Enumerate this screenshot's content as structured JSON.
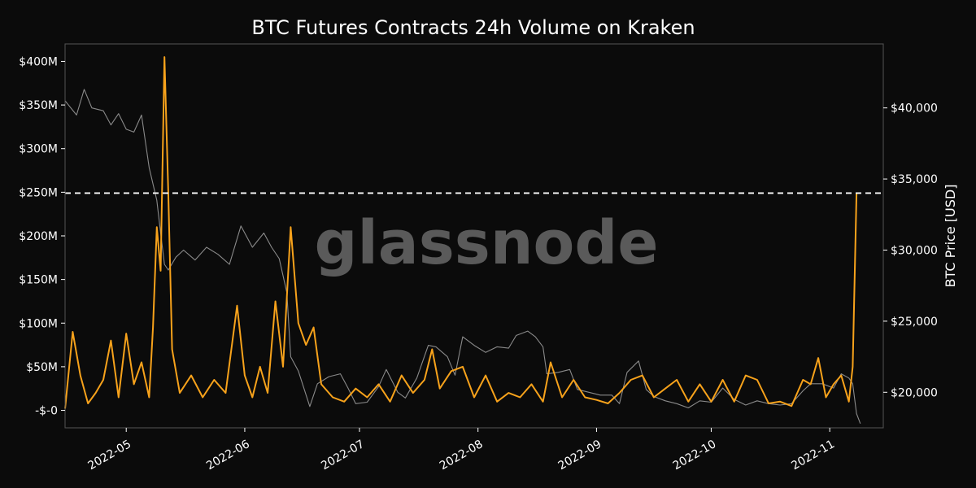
{
  "chart_data": {
    "type": "line",
    "title": "BTC Futures Contracts 24h Volume on Kraken",
    "watermark": "glassnode",
    "y_left": {
      "range": [
        -20000000,
        420000000
      ],
      "ticks": [
        0,
        50000000,
        100000000,
        150000000,
        200000000,
        250000000,
        300000000,
        350000000,
        400000000
      ],
      "tick_labels": [
        "-$-0",
        "$50M",
        "$100M",
        "$150M",
        "$200M",
        "$250M",
        "$300M",
        "$350M",
        "$400M"
      ]
    },
    "y_right": {
      "label": "BTC Price [USD]",
      "range": [
        17500,
        44500
      ],
      "ticks": [
        20000,
        25000,
        30000,
        35000,
        40000
      ],
      "tick_labels": [
        "$20,000",
        "$25,000",
        "$30,000",
        "$35,000",
        "$40,000"
      ]
    },
    "x_axis": {
      "range": [
        "2022-04-15",
        "2022-11-15"
      ],
      "ticks": [
        "2022-05-01",
        "2022-06-01",
        "2022-07-01",
        "2022-08-01",
        "2022-09-01",
        "2022-10-01",
        "2022-11-01"
      ],
      "tick_labels": [
        "2022-05",
        "2022-06",
        "2022-07",
        "2022-08",
        "2022-09",
        "2022-10",
        "2022-11"
      ]
    },
    "reference_line": {
      "y": 249000000,
      "style": "dashed",
      "color": "#ffffff"
    },
    "colors": {
      "volume": "#f7a21b",
      "price": "#8a8a8a",
      "background": "#0b0b0b",
      "axis": "#555555",
      "text": "#ffffff"
    },
    "series": [
      {
        "axis": "right",
        "color": "#8a8a8a",
        "points": [
          [
            "2022-04-15",
            40500
          ],
          [
            "2022-04-18",
            39500
          ],
          [
            "2022-04-20",
            41300
          ],
          [
            "2022-04-22",
            40000
          ],
          [
            "2022-04-25",
            39800
          ],
          [
            "2022-04-27",
            38800
          ],
          [
            "2022-04-29",
            39600
          ],
          [
            "2022-05-01",
            38500
          ],
          [
            "2022-05-03",
            38300
          ],
          [
            "2022-05-05",
            39500
          ],
          [
            "2022-05-07",
            35800
          ],
          [
            "2022-05-09",
            33500
          ],
          [
            "2022-05-10",
            31200
          ],
          [
            "2022-05-11",
            29000
          ],
          [
            "2022-05-12",
            28600
          ],
          [
            "2022-05-14",
            29500
          ],
          [
            "2022-05-16",
            30000
          ],
          [
            "2022-05-19",
            29300
          ],
          [
            "2022-05-22",
            30200
          ],
          [
            "2022-05-25",
            29700
          ],
          [
            "2022-05-28",
            29000
          ],
          [
            "2022-05-31",
            31700
          ],
          [
            "2022-06-03",
            30200
          ],
          [
            "2022-06-06",
            31200
          ],
          [
            "2022-06-08",
            30200
          ],
          [
            "2022-06-10",
            29400
          ],
          [
            "2022-06-12",
            27000
          ],
          [
            "2022-06-13",
            22500
          ],
          [
            "2022-06-15",
            21500
          ],
          [
            "2022-06-18",
            19000
          ],
          [
            "2022-06-20",
            20600
          ],
          [
            "2022-06-23",
            21100
          ],
          [
            "2022-06-26",
            21300
          ],
          [
            "2022-06-28",
            20300
          ],
          [
            "2022-06-30",
            19200
          ],
          [
            "2022-07-03",
            19300
          ],
          [
            "2022-07-06",
            20400
          ],
          [
            "2022-07-08",
            21600
          ],
          [
            "2022-07-11",
            20000
          ],
          [
            "2022-07-13",
            19600
          ],
          [
            "2022-07-16",
            21000
          ],
          [
            "2022-07-19",
            23300
          ],
          [
            "2022-07-21",
            23200
          ],
          [
            "2022-07-24",
            22500
          ],
          [
            "2022-07-26",
            21200
          ],
          [
            "2022-07-28",
            23900
          ],
          [
            "2022-07-31",
            23300
          ],
          [
            "2022-08-03",
            22800
          ],
          [
            "2022-08-06",
            23200
          ],
          [
            "2022-08-09",
            23100
          ],
          [
            "2022-08-11",
            24000
          ],
          [
            "2022-08-14",
            24300
          ],
          [
            "2022-08-16",
            23900
          ],
          [
            "2022-08-18",
            23200
          ],
          [
            "2022-08-19",
            21300
          ],
          [
            "2022-08-22",
            21400
          ],
          [
            "2022-08-25",
            21600
          ],
          [
            "2022-08-27",
            20200
          ],
          [
            "2022-08-30",
            20000
          ],
          [
            "2022-09-02",
            19800
          ],
          [
            "2022-09-05",
            19800
          ],
          [
            "2022-09-07",
            19200
          ],
          [
            "2022-09-09",
            21400
          ],
          [
            "2022-09-12",
            22200
          ],
          [
            "2022-09-14",
            20200
          ],
          [
            "2022-09-16",
            19700
          ],
          [
            "2022-09-19",
            19400
          ],
          [
            "2022-09-22",
            19200
          ],
          [
            "2022-09-25",
            18900
          ],
          [
            "2022-09-28",
            19400
          ],
          [
            "2022-10-01",
            19300
          ],
          [
            "2022-10-04",
            20300
          ],
          [
            "2022-10-07",
            19500
          ],
          [
            "2022-10-10",
            19100
          ],
          [
            "2022-10-13",
            19400
          ],
          [
            "2022-10-16",
            19200
          ],
          [
            "2022-10-19",
            19100
          ],
          [
            "2022-10-22",
            19200
          ],
          [
            "2022-10-25",
            20100
          ],
          [
            "2022-10-27",
            20600
          ],
          [
            "2022-10-30",
            20600
          ],
          [
            "2022-11-02",
            20300
          ],
          [
            "2022-11-04",
            21300
          ],
          [
            "2022-11-06",
            21000
          ],
          [
            "2022-11-07",
            20600
          ],
          [
            "2022-11-08",
            18500
          ],
          [
            "2022-11-09",
            17800
          ]
        ]
      },
      {
        "axis": "left",
        "color": "#f7a21b",
        "points": [
          [
            "2022-04-15",
            2000000
          ],
          [
            "2022-04-17",
            90000000
          ],
          [
            "2022-04-19",
            40000000
          ],
          [
            "2022-04-21",
            8000000
          ],
          [
            "2022-04-23",
            20000000
          ],
          [
            "2022-04-25",
            35000000
          ],
          [
            "2022-04-27",
            80000000
          ],
          [
            "2022-04-29",
            15000000
          ],
          [
            "2022-05-01",
            88000000
          ],
          [
            "2022-05-03",
            30000000
          ],
          [
            "2022-05-05",
            55000000
          ],
          [
            "2022-05-07",
            15000000
          ],
          [
            "2022-05-08",
            95000000
          ],
          [
            "2022-05-09",
            210000000
          ],
          [
            "2022-05-10",
            160000000
          ],
          [
            "2022-05-11",
            405000000
          ],
          [
            "2022-05-12",
            250000000
          ],
          [
            "2022-05-13",
            70000000
          ],
          [
            "2022-05-15",
            20000000
          ],
          [
            "2022-05-18",
            40000000
          ],
          [
            "2022-05-21",
            15000000
          ],
          [
            "2022-05-24",
            35000000
          ],
          [
            "2022-05-27",
            20000000
          ],
          [
            "2022-05-30",
            120000000
          ],
          [
            "2022-06-01",
            40000000
          ],
          [
            "2022-06-03",
            15000000
          ],
          [
            "2022-06-05",
            50000000
          ],
          [
            "2022-06-07",
            20000000
          ],
          [
            "2022-06-09",
            125000000
          ],
          [
            "2022-06-11",
            50000000
          ],
          [
            "2022-06-13",
            210000000
          ],
          [
            "2022-06-15",
            100000000
          ],
          [
            "2022-06-17",
            75000000
          ],
          [
            "2022-06-19",
            95000000
          ],
          [
            "2022-06-21",
            30000000
          ],
          [
            "2022-06-24",
            15000000
          ],
          [
            "2022-06-27",
            10000000
          ],
          [
            "2022-06-30",
            25000000
          ],
          [
            "2022-07-03",
            15000000
          ],
          [
            "2022-07-06",
            30000000
          ],
          [
            "2022-07-09",
            10000000
          ],
          [
            "2022-07-12",
            40000000
          ],
          [
            "2022-07-15",
            20000000
          ],
          [
            "2022-07-18",
            35000000
          ],
          [
            "2022-07-20",
            70000000
          ],
          [
            "2022-07-22",
            25000000
          ],
          [
            "2022-07-25",
            45000000
          ],
          [
            "2022-07-28",
            50000000
          ],
          [
            "2022-07-31",
            15000000
          ],
          [
            "2022-08-03",
            40000000
          ],
          [
            "2022-08-06",
            10000000
          ],
          [
            "2022-08-09",
            20000000
          ],
          [
            "2022-08-12",
            15000000
          ],
          [
            "2022-08-15",
            30000000
          ],
          [
            "2022-08-18",
            10000000
          ],
          [
            "2022-08-20",
            55000000
          ],
          [
            "2022-08-23",
            15000000
          ],
          [
            "2022-08-26",
            35000000
          ],
          [
            "2022-08-29",
            15000000
          ],
          [
            "2022-09-01",
            12000000
          ],
          [
            "2022-09-04",
            8000000
          ],
          [
            "2022-09-07",
            20000000
          ],
          [
            "2022-09-10",
            35000000
          ],
          [
            "2022-09-13",
            40000000
          ],
          [
            "2022-09-16",
            15000000
          ],
          [
            "2022-09-19",
            25000000
          ],
          [
            "2022-09-22",
            35000000
          ],
          [
            "2022-09-25",
            10000000
          ],
          [
            "2022-09-28",
            30000000
          ],
          [
            "2022-10-01",
            10000000
          ],
          [
            "2022-10-04",
            35000000
          ],
          [
            "2022-10-07",
            10000000
          ],
          [
            "2022-10-10",
            40000000
          ],
          [
            "2022-10-13",
            35000000
          ],
          [
            "2022-10-16",
            8000000
          ],
          [
            "2022-10-19",
            10000000
          ],
          [
            "2022-10-22",
            5000000
          ],
          [
            "2022-10-25",
            35000000
          ],
          [
            "2022-10-27",
            30000000
          ],
          [
            "2022-10-29",
            60000000
          ],
          [
            "2022-10-31",
            15000000
          ],
          [
            "2022-11-02",
            30000000
          ],
          [
            "2022-11-04",
            40000000
          ],
          [
            "2022-11-06",
            10000000
          ],
          [
            "2022-11-07",
            50000000
          ],
          [
            "2022-11-08",
            249000000
          ]
        ]
      }
    ]
  }
}
